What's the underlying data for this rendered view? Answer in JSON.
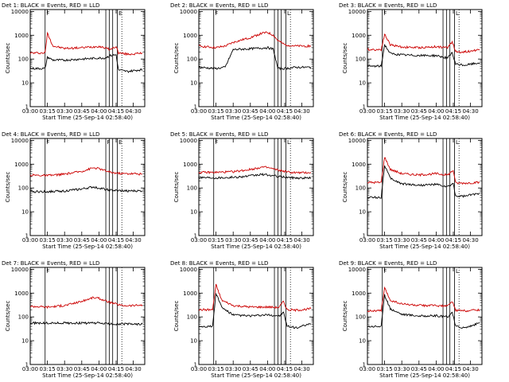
{
  "figure": {
    "xlabel": "Start Time (25-Sep-14 02:58:40)",
    "ylabel": "Counts/sec",
    "x_ticks": [
      "03:00",
      "03:15",
      "03:30",
      "03:45",
      "04:00",
      "04:15",
      "04:30"
    ],
    "y_ticks": [
      "1",
      "10",
      "100",
      "1000",
      "10000"
    ]
  },
  "chart_data": [
    {
      "type": "line",
      "title": "Det 1: BLACK = Events, RED = LLD",
      "xlabel": "Start Time (25-Sep-14 02:58:40)",
      "ylabel": "Counts/sec",
      "log_y": true,
      "ylim": [
        1,
        12000
      ],
      "xlim": [
        "03:00",
        "04:40"
      ],
      "markers": [
        {
          "x": "03:13",
          "label": "F"
        },
        {
          "x": "04:06",
          "label": ""
        },
        {
          "x": "04:09",
          "label": ""
        },
        {
          "x": "04:12",
          "label": ""
        },
        {
          "x": "04:16",
          "label": "E"
        }
      ],
      "dotted_at": [
        "04:20"
      ],
      "x": [
        "03:00",
        "03:13",
        "03:15",
        "03:20",
        "03:30",
        "03:45",
        "04:00",
        "04:05",
        "04:10",
        "04:15",
        "04:17",
        "04:25",
        "04:35",
        "04:38"
      ],
      "series": [
        {
          "color": "#cc0000",
          "values": [
            180,
            180,
            1200,
            350,
            280,
            300,
            340,
            300,
            250,
            340,
            180,
            160,
            170,
            180
          ]
        },
        {
          "color": "#000000",
          "values": [
            40,
            40,
            120,
            90,
            90,
            100,
            110,
            110,
            140,
            150,
            35,
            30,
            35,
            35
          ]
        }
      ]
    },
    {
      "type": "line",
      "title": "Det 2: BLACK = Events, RED = LLD",
      "xlabel": "Start Time (25-Sep-14 02:58:40)",
      "ylabel": "Counts/sec",
      "log_y": true,
      "ylim": [
        1,
        12000
      ],
      "xlim": [
        "03:00",
        "04:40"
      ],
      "markers": [
        {
          "x": "03:13",
          "label": "F"
        },
        {
          "x": "04:06",
          "label": ""
        },
        {
          "x": "04:09",
          "label": ""
        },
        {
          "x": "04:12",
          "label": ""
        },
        {
          "x": "04:16",
          "label": "L"
        }
      ],
      "dotted_at": [
        "04:20"
      ],
      "x": [
        "03:00",
        "03:15",
        "03:23",
        "03:30",
        "03:45",
        "03:55",
        "04:00",
        "04:05",
        "04:09",
        "04:15",
        "04:25",
        "04:38"
      ],
      "series": [
        {
          "color": "#cc0000",
          "values": [
            350,
            300,
            350,
            500,
            800,
            1200,
            1300,
            1000,
            600,
            400,
            350,
            350
          ]
        },
        {
          "color": "#000000",
          "values": [
            45,
            40,
            45,
            250,
            270,
            290,
            300,
            260,
            40,
            40,
            45,
            45
          ]
        }
      ]
    },
    {
      "type": "line",
      "title": "Det 3: BLACK = Events, RED = LLD",
      "xlabel": "Start Time (25-Sep-14 02:58:40)",
      "ylabel": "Counts/sec",
      "log_y": true,
      "ylim": [
        1,
        12000
      ],
      "xlim": [
        "03:00",
        "04:40"
      ],
      "markers": [
        {
          "x": "03:13",
          "label": "F"
        },
        {
          "x": "04:06",
          "label": ""
        },
        {
          "x": "04:09",
          "label": ""
        },
        {
          "x": "04:12",
          "label": ""
        },
        {
          "x": "04:16",
          "label": "L"
        }
      ],
      "dotted_at": [
        "04:20"
      ],
      "x": [
        "03:00",
        "03:12",
        "03:15",
        "03:20",
        "03:30",
        "03:45",
        "04:00",
        "04:10",
        "04:14",
        "04:17",
        "04:25",
        "04:38"
      ],
      "series": [
        {
          "color": "#cc0000",
          "values": [
            250,
            250,
            1100,
            400,
            320,
            300,
            330,
            300,
            550,
            200,
            200,
            250
          ]
        },
        {
          "color": "#000000",
          "values": [
            50,
            50,
            400,
            170,
            150,
            140,
            140,
            110,
            180,
            60,
            55,
            70
          ]
        }
      ]
    },
    {
      "type": "line",
      "title": "Det 4: BLACK = Events, RED = LLD",
      "xlabel": "Start Time (25-Sep-14 02:58:40)",
      "ylabel": "Counts/sec",
      "log_y": true,
      "ylim": [
        1,
        12000
      ],
      "xlim": [
        "03:00",
        "04:40"
      ],
      "markers": [
        {
          "x": "03:13",
          "label": "F"
        },
        {
          "x": "04:06",
          "label": "F"
        },
        {
          "x": "04:09",
          "label": ""
        },
        {
          "x": "04:12",
          "label": ""
        },
        {
          "x": "04:16",
          "label": "E"
        }
      ],
      "dotted_at": [
        "04:20"
      ],
      "x": [
        "03:00",
        "03:15",
        "03:30",
        "03:45",
        "03:55",
        "04:00",
        "04:10",
        "04:20",
        "04:30",
        "04:38"
      ],
      "series": [
        {
          "color": "#cc0000",
          "values": [
            350,
            330,
            380,
            500,
            700,
            650,
            450,
            400,
            400,
            380
          ]
        },
        {
          "color": "#000000",
          "values": [
            70,
            70,
            75,
            90,
            110,
            100,
            80,
            75,
            75,
            75
          ]
        }
      ]
    },
    {
      "type": "line",
      "title": "Det 5: BLACK = Events, RED = LLD",
      "xlabel": "Start Time (25-Sep-14 02:58:40)",
      "ylabel": "Counts/sec",
      "log_y": true,
      "ylim": [
        1,
        12000
      ],
      "xlim": [
        "03:00",
        "04:40"
      ],
      "markers": [
        {
          "x": "03:13",
          "label": "F"
        },
        {
          "x": "04:06",
          "label": ""
        },
        {
          "x": "04:09",
          "label": ""
        },
        {
          "x": "04:12",
          "label": ""
        },
        {
          "x": "04:16",
          "label": "L"
        }
      ],
      "dotted_at": [
        "04:20"
      ],
      "x": [
        "03:00",
        "03:15",
        "03:30",
        "03:45",
        "03:55",
        "04:00",
        "04:10",
        "04:20",
        "04:30",
        "04:38"
      ],
      "series": [
        {
          "color": "#cc0000",
          "values": [
            450,
            450,
            480,
            600,
            750,
            720,
            550,
            450,
            430,
            450
          ]
        },
        {
          "color": "#000000",
          "values": [
            280,
            270,
            280,
            320,
            370,
            350,
            300,
            270,
            260,
            270
          ]
        }
      ]
    },
    {
      "type": "line",
      "title": "Det 6: BLACK = Events, RED = LLD",
      "xlabel": "Start Time (25-Sep-14 02:58:40)",
      "ylabel": "Counts/sec",
      "log_y": true,
      "ylim": [
        1,
        12000
      ],
      "xlim": [
        "03:00",
        "04:40"
      ],
      "markers": [
        {
          "x": "03:13",
          "label": "F"
        },
        {
          "x": "04:06",
          "label": ""
        },
        {
          "x": "04:09",
          "label": ""
        },
        {
          "x": "04:12",
          "label": ""
        },
        {
          "x": "04:16",
          "label": "L"
        }
      ],
      "dotted_at": [
        "04:20"
      ],
      "x": [
        "03:00",
        "03:12",
        "03:15",
        "03:20",
        "03:30",
        "03:45",
        "04:00",
        "04:10",
        "04:15",
        "04:17",
        "04:25",
        "04:38"
      ],
      "series": [
        {
          "color": "#cc0000",
          "values": [
            170,
            170,
            2000,
            600,
            400,
            350,
            400,
            350,
            550,
            160,
            160,
            170
          ]
        },
        {
          "color": "#000000",
          "values": [
            40,
            40,
            900,
            250,
            150,
            130,
            140,
            110,
            150,
            45,
            45,
            60
          ]
        }
      ]
    },
    {
      "type": "line",
      "title": "Det 7: BLACK = Events, RED = LLD",
      "xlabel": "Start Time (25-Sep-14 02:58:40)",
      "ylabel": "Counts/sec",
      "log_y": true,
      "ylim": [
        1,
        12000
      ],
      "xlim": [
        "03:00",
        "04:40"
      ],
      "markers": [
        {
          "x": "03:13",
          "label": "F"
        },
        {
          "x": "04:06",
          "label": ""
        },
        {
          "x": "04:09",
          "label": ""
        },
        {
          "x": "04:12",
          "label": ""
        },
        {
          "x": "04:16",
          "label": ""
        }
      ],
      "dotted_at": [
        "04:20"
      ],
      "x": [
        "03:00",
        "03:15",
        "03:30",
        "03:45",
        "03:55",
        "04:00",
        "04:10",
        "04:20",
        "04:30",
        "04:38"
      ],
      "series": [
        {
          "color": "#cc0000",
          "values": [
            280,
            260,
            300,
            450,
            650,
            600,
            400,
            300,
            300,
            320
          ]
        },
        {
          "color": "#000000",
          "values": [
            55,
            55,
            55,
            55,
            55,
            55,
            50,
            50,
            50,
            50
          ]
        }
      ]
    },
    {
      "type": "line",
      "title": "Det 8: BLACK = Events, RED = LLD",
      "xlabel": "Start Time (25-Sep-14 02:58:40)",
      "ylabel": "Counts/sec",
      "log_y": true,
      "ylim": [
        1,
        12000
      ],
      "xlim": [
        "03:00",
        "04:40"
      ],
      "markers": [
        {
          "x": "03:13",
          "label": ""
        },
        {
          "x": "04:06",
          "label": ""
        },
        {
          "x": "04:09",
          "label": ""
        },
        {
          "x": "04:12",
          "label": ""
        },
        {
          "x": "04:16",
          "label": ""
        }
      ],
      "dotted_at": [
        "04:20"
      ],
      "x": [
        "03:00",
        "03:12",
        "03:15",
        "03:20",
        "03:30",
        "03:45",
        "04:00",
        "04:10",
        "04:14",
        "04:17",
        "04:25",
        "04:38"
      ],
      "series": [
        {
          "color": "#cc0000",
          "values": [
            200,
            200,
            2200,
            500,
            300,
            260,
            260,
            250,
            450,
            200,
            190,
            220
          ]
        },
        {
          "color": "#000000",
          "values": [
            40,
            40,
            1000,
            250,
            120,
            110,
            120,
            110,
            150,
            40,
            35,
            50
          ]
        }
      ]
    },
    {
      "type": "line",
      "title": "Det 9: BLACK = Events, RED = LLD",
      "xlabel": "Start Time (25-Sep-14 02:58:40)",
      "ylabel": "Counts/sec",
      "log_y": true,
      "ylim": [
        1,
        12000
      ],
      "xlim": [
        "03:00",
        "04:40"
      ],
      "markers": [
        {
          "x": "03:13",
          "label": "F"
        },
        {
          "x": "04:06",
          "label": ""
        },
        {
          "x": "04:09",
          "label": ""
        },
        {
          "x": "04:12",
          "label": ""
        },
        {
          "x": "04:16",
          "label": "L"
        }
      ],
      "dotted_at": [
        "04:20"
      ],
      "x": [
        "03:00",
        "03:12",
        "03:15",
        "03:20",
        "03:30",
        "03:45",
        "04:00",
        "04:10",
        "04:14",
        "04:17",
        "04:25",
        "04:38"
      ],
      "series": [
        {
          "color": "#cc0000",
          "values": [
            180,
            180,
            1600,
            500,
            350,
            300,
            300,
            280,
            450,
            190,
            180,
            200
          ]
        },
        {
          "color": "#000000",
          "values": [
            40,
            40,
            800,
            220,
            130,
            110,
            110,
            100,
            160,
            40,
            35,
            55
          ]
        }
      ]
    }
  ]
}
